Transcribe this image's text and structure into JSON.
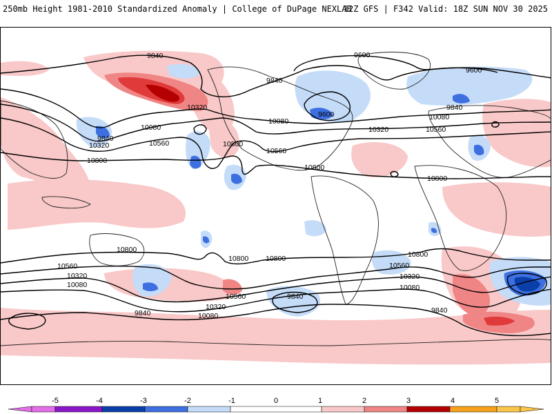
{
  "header": {
    "title": "250mb Height 1981-2010 Standardized Anomaly | College of DuPage NEXLAB",
    "model_info": "12Z GFS | F342 Valid: 18Z SUN NOV 30 2025"
  },
  "colors": {
    "neg5": "#e36fe8",
    "neg4": "#8a16c9",
    "neg3": "#0a3ea8",
    "neg2": "#3d6fe0",
    "neg1": "#c5dcf8",
    "zero": "#ffffff",
    "pos1": "#f9c8c8",
    "pos2": "#f08585",
    "pos3": "#e03a3a",
    "pos4": "#b40000",
    "pos5": "#f6a21a"
  },
  "contour_labels": [
    {
      "id": "c1",
      "value": "9840"
    },
    {
      "id": "c2",
      "value": "9840"
    },
    {
      "id": "c3",
      "value": "9600"
    },
    {
      "id": "c4",
      "value": "9600"
    },
    {
      "id": "c5",
      "value": "9600"
    },
    {
      "id": "c6",
      "value": "9840"
    },
    {
      "id": "c7",
      "value": "10320"
    },
    {
      "id": "c8",
      "value": "10080"
    },
    {
      "id": "c9",
      "value": "10080"
    },
    {
      "id": "c10",
      "value": "10080"
    },
    {
      "id": "c11",
      "value": "10560"
    },
    {
      "id": "c12",
      "value": "9840"
    },
    {
      "id": "c13",
      "value": "10320"
    },
    {
      "id": "c14",
      "value": "10560"
    },
    {
      "id": "c15",
      "value": "10800"
    },
    {
      "id": "c16",
      "value": "10320"
    },
    {
      "id": "c17",
      "value": "10560"
    },
    {
      "id": "c18",
      "value": "10800"
    },
    {
      "id": "c19",
      "value": "10800"
    },
    {
      "id": "c20",
      "value": "10800"
    },
    {
      "id": "c21",
      "value": "10800"
    },
    {
      "id": "c22",
      "value": "10800"
    },
    {
      "id": "c23",
      "value": "10800"
    },
    {
      "id": "c24",
      "value": "10560"
    },
    {
      "id": "c25",
      "value": "10320"
    },
    {
      "id": "c26",
      "value": "10080"
    },
    {
      "id": "c27",
      "value": "10560"
    },
    {
      "id": "c28",
      "value": "10320"
    },
    {
      "id": "c29",
      "value": "10080"
    },
    {
      "id": "c30",
      "value": "9840"
    },
    {
      "id": "c31",
      "value": "9840"
    },
    {
      "id": "c32",
      "value": "10800"
    },
    {
      "id": "c33",
      "value": "10560"
    },
    {
      "id": "c34",
      "value": "10320"
    },
    {
      "id": "c35",
      "value": "10080"
    },
    {
      "id": "c36",
      "value": "9840"
    }
  ],
  "colorbar": {
    "ticks": [
      "-5",
      "-4",
      "-3",
      "-2",
      "-1",
      "0",
      "1",
      "2",
      "3",
      "4",
      "5"
    ]
  }
}
